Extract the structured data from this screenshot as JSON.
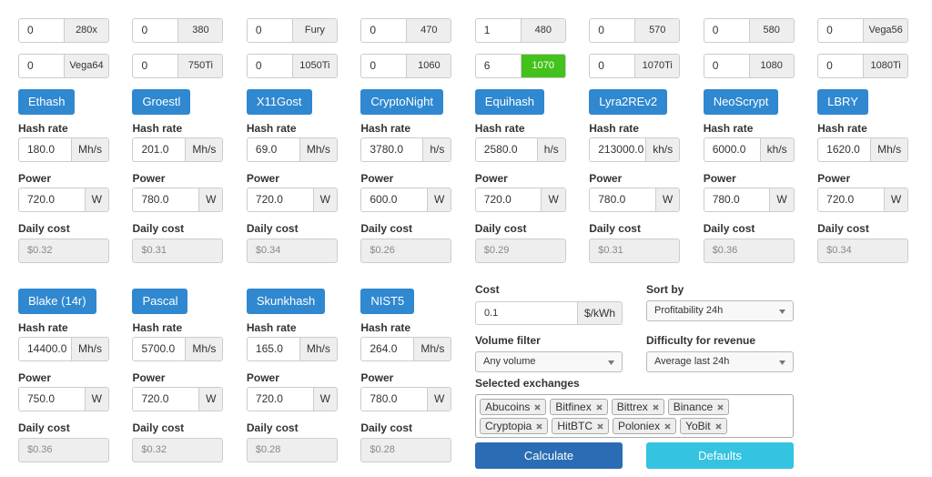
{
  "gpus": [
    {
      "count": "0",
      "label": "280x"
    },
    {
      "count": "0",
      "label": "380"
    },
    {
      "count": "0",
      "label": "Fury"
    },
    {
      "count": "0",
      "label": "470"
    },
    {
      "count": "1",
      "label": "480"
    },
    {
      "count": "0",
      "label": "570"
    },
    {
      "count": "0",
      "label": "580"
    },
    {
      "count": "0",
      "label": "Vega56"
    },
    {
      "count": "0",
      "label": "Vega64"
    },
    {
      "count": "0",
      "label": "750Ti"
    },
    {
      "count": "0",
      "label": "1050Ti"
    },
    {
      "count": "0",
      "label": "1060"
    },
    {
      "count": "6",
      "label": "1070",
      "highlighted": true
    },
    {
      "count": "0",
      "label": "1070Ti"
    },
    {
      "count": "0",
      "label": "1080"
    },
    {
      "count": "0",
      "label": "1080Ti"
    }
  ],
  "field_labels": {
    "hash_rate": "Hash rate",
    "power": "Power",
    "daily_cost": "Daily cost"
  },
  "algorithms": [
    {
      "name": "Ethash",
      "hash_rate": "180.0",
      "hash_unit": "Mh/s",
      "power": "720.0",
      "power_unit": "W",
      "daily_cost": "$0.32"
    },
    {
      "name": "Groestl",
      "hash_rate": "201.0",
      "hash_unit": "Mh/s",
      "power": "780.0",
      "power_unit": "W",
      "daily_cost": "$0.31"
    },
    {
      "name": "X11Gost",
      "hash_rate": "69.0",
      "hash_unit": "Mh/s",
      "power": "720.0",
      "power_unit": "W",
      "daily_cost": "$0.34"
    },
    {
      "name": "CryptoNight",
      "hash_rate": "3780.0",
      "hash_unit": "h/s",
      "power": "600.0",
      "power_unit": "W",
      "daily_cost": "$0.26"
    },
    {
      "name": "Equihash",
      "hash_rate": "2580.0",
      "hash_unit": "h/s",
      "power": "720.0",
      "power_unit": "W",
      "daily_cost": "$0.29"
    },
    {
      "name": "Lyra2REv2",
      "hash_rate": "213000.0",
      "hash_unit": "kh/s",
      "power": "780.0",
      "power_unit": "W",
      "daily_cost": "$0.31"
    },
    {
      "name": "NeoScrypt",
      "hash_rate": "6000.0",
      "hash_unit": "kh/s",
      "power": "780.0",
      "power_unit": "W",
      "daily_cost": "$0.36"
    },
    {
      "name": "LBRY",
      "hash_rate": "1620.0",
      "hash_unit": "Mh/s",
      "power": "720.0",
      "power_unit": "W",
      "daily_cost": "$0.34"
    },
    {
      "name": "Blake (14r)",
      "hash_rate": "14400.0",
      "hash_unit": "Mh/s",
      "power": "750.0",
      "power_unit": "W",
      "daily_cost": "$0.36"
    },
    {
      "name": "Pascal",
      "hash_rate": "5700.0",
      "hash_unit": "Mh/s",
      "power": "720.0",
      "power_unit": "W",
      "daily_cost": "$0.32"
    },
    {
      "name": "Skunkhash",
      "hash_rate": "165.0",
      "hash_unit": "Mh/s",
      "power": "720.0",
      "power_unit": "W",
      "daily_cost": "$0.28"
    },
    {
      "name": "NIST5",
      "hash_rate": "264.0",
      "hash_unit": "Mh/s",
      "power": "780.0",
      "power_unit": "W",
      "daily_cost": "$0.28"
    }
  ],
  "settings": {
    "cost": {
      "label": "Cost",
      "value": "0.1",
      "unit": "$/kWh"
    },
    "sort_by": {
      "label": "Sort by",
      "value": "Profitability 24h"
    },
    "volume_filter": {
      "label": "Volume filter",
      "value": "Any volume"
    },
    "difficulty": {
      "label": "Difficulty for revenue",
      "value": "Average last 24h"
    },
    "exchanges": {
      "label": "Selected exchanges",
      "items": [
        "Abucoins",
        "Bitfinex",
        "Bittrex",
        "Binance",
        "Cryptopia",
        "HitBTC",
        "Poloniex",
        "YoBit"
      ]
    },
    "buttons": {
      "calculate": "Calculate",
      "defaults": "Defaults"
    }
  }
}
